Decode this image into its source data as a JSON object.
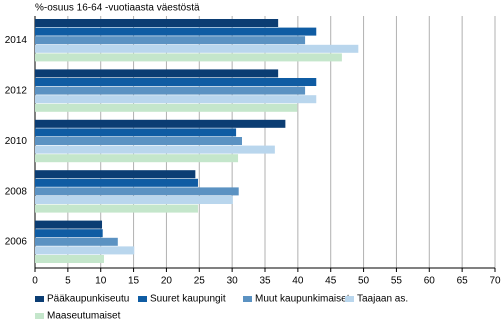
{
  "chart_data": {
    "type": "hbar",
    "title": "%-osuus 16-64 -vuotiaasta väestöstä",
    "categories": [
      "2014",
      "2012",
      "2010",
      "2008",
      "2006"
    ],
    "series": [
      {
        "name": "Pääkaupunkiseutu",
        "color": "#0b3d73",
        "values": [
          37.0,
          37.0,
          38.1,
          24.4,
          10.2
        ]
      },
      {
        "name": "Suuret kaupungit",
        "color": "#0f5ca3",
        "values": [
          42.8,
          42.8,
          30.6,
          24.8,
          10.3
        ]
      },
      {
        "name": "Muut kaupunkimaiset",
        "color": "#5b92c2",
        "values": [
          41.1,
          41.1,
          31.5,
          31.0,
          12.6
        ]
      },
      {
        "name": "Taajaan as.",
        "color": "#b9d6ed",
        "values": [
          49.2,
          42.8,
          36.5,
          30.1,
          15.1
        ]
      },
      {
        "name": "Maaseutumaiset",
        "color": "#c4e6cb",
        "values": [
          46.7,
          39.9,
          30.9,
          24.8,
          10.5
        ]
      }
    ],
    "xlim": [
      0,
      70
    ],
    "xticks": [
      0,
      5,
      10,
      15,
      20,
      25,
      30,
      35,
      40,
      45,
      50,
      55,
      60,
      65,
      70
    ],
    "grid": true,
    "legend": "bottom"
  }
}
